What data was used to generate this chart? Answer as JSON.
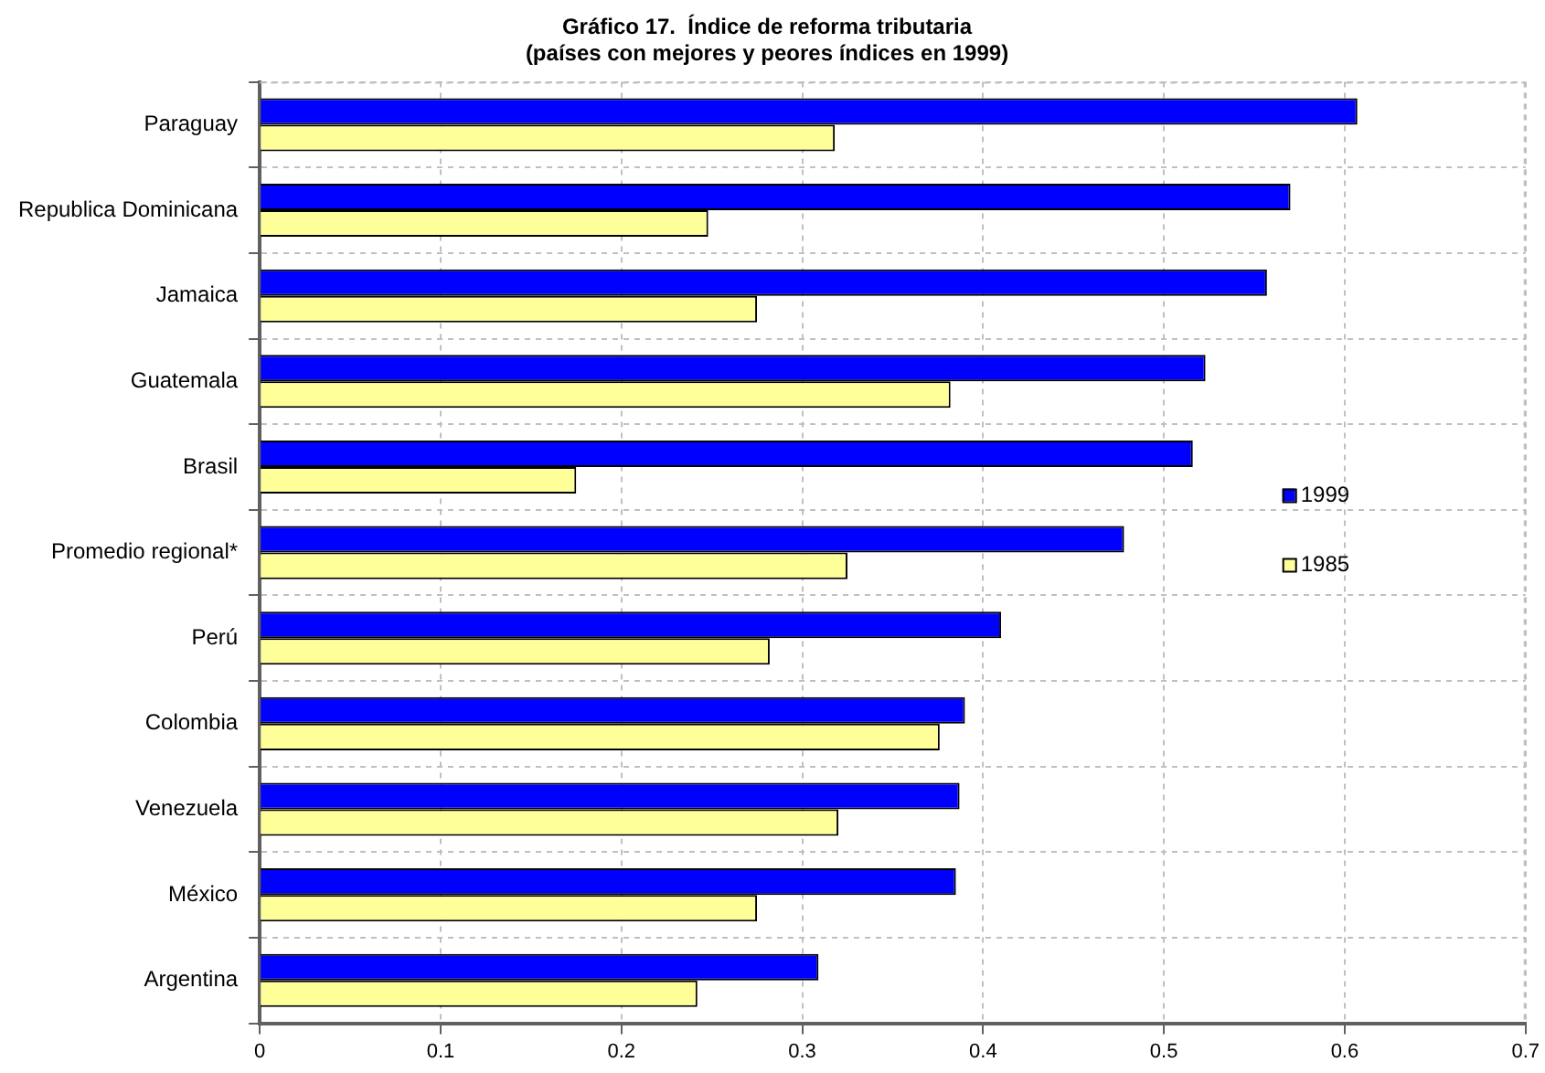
{
  "chart_data": {
    "type": "bar",
    "orientation": "horizontal",
    "title": [
      "Gráfico 17.  Índice de reforma tributaria",
      "(países con mejores y peores índices en 1999)"
    ],
    "categories": [
      "Paraguay",
      "Republica Dominicana",
      "Jamaica",
      "Guatemala",
      "Brasil",
      "Promedio regional*",
      "Perú",
      "Colombia",
      "Venezuela",
      "México",
      "Argentina"
    ],
    "series": [
      {
        "name": "1999",
        "color": "#0000ff",
        "values": [
          0.607,
          0.57,
          0.557,
          0.523,
          0.516,
          0.478,
          0.41,
          0.39,
          0.387,
          0.385,
          0.309
        ]
      },
      {
        "name": "1985",
        "color": "#ffff99",
        "values": [
          0.318,
          0.248,
          0.275,
          0.382,
          0.175,
          0.325,
          0.282,
          0.376,
          0.32,
          0.275,
          0.242
        ]
      }
    ],
    "xlim": [
      0,
      0.7
    ],
    "xticks": [
      0,
      0.1,
      0.2,
      0.3,
      0.4,
      0.5,
      0.6,
      0.7
    ],
    "grid": true,
    "legend": "right"
  }
}
